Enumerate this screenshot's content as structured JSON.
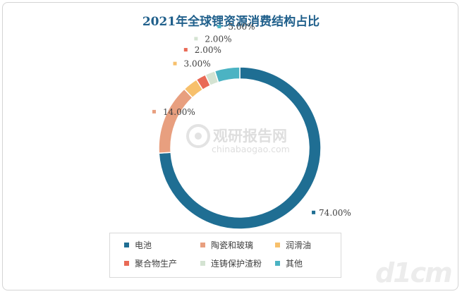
{
  "chart_data": {
    "type": "pie",
    "title": "2021年全球锂资源消费结构占比",
    "categories": [
      "电池",
      "陶瓷和玻璃",
      "润滑油",
      "聚合物生产",
      "连铸保护渣粉",
      "其他"
    ],
    "values": [
      74,
      14,
      3,
      2,
      2,
      5
    ],
    "labels": [
      "74.00%",
      "14.00%",
      "3.00%",
      "2.00%",
      "2.00%",
      "5.00%"
    ],
    "colors": [
      "#1f6e93",
      "#e89f7f",
      "#f7c06c",
      "#e96a56",
      "#d4e3d2",
      "#4bb3c3"
    ],
    "donut": true,
    "legend": "bottom"
  },
  "watermark": {
    "brand": "观研报告网",
    "url": "chinabaogao.com"
  }
}
